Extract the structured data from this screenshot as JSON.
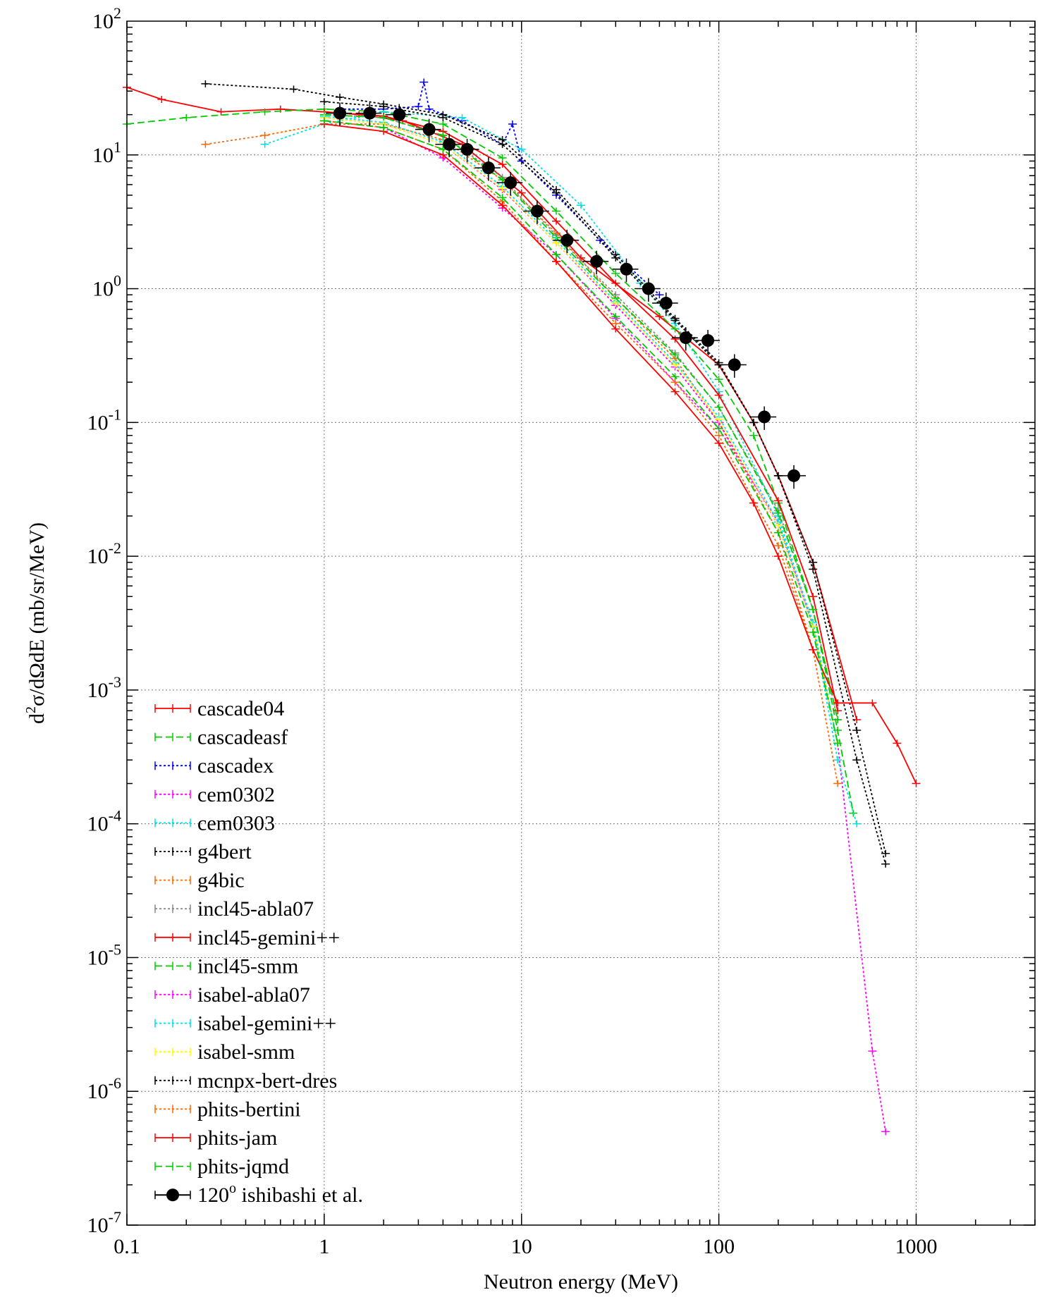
{
  "chart_data": {
    "type": "line",
    "x_scale": "log",
    "y_scale": "log",
    "xlim": [
      0.1,
      4000
    ],
    "ylim": [
      1e-07,
      100
    ],
    "grid": true,
    "legend_position": "bottom-left",
    "xlabel": "Neutron energy (MeV)",
    "ylabel_parts": [
      "d",
      "2",
      "σ/dΩdE (mb/sr/MeV)"
    ],
    "x_ticks": [
      {
        "value": 0.1,
        "label": "0.1"
      },
      {
        "value": 1,
        "label": "1"
      },
      {
        "value": 10,
        "label": "10"
      },
      {
        "value": 100,
        "label": "100"
      },
      {
        "value": 1000,
        "label": "1000"
      }
    ],
    "y_ticks": [
      {
        "value": 100,
        "base": "10",
        "exp": "2"
      },
      {
        "value": 10,
        "base": "10",
        "exp": "1"
      },
      {
        "value": 1,
        "base": "10",
        "exp": "0"
      },
      {
        "value": 0.1,
        "base": "10",
        "exp": "-1"
      },
      {
        "value": 0.01,
        "base": "10",
        "exp": "-2"
      },
      {
        "value": 0.001,
        "base": "10",
        "exp": "-3"
      },
      {
        "value": 0.0001,
        "base": "10",
        "exp": "-4"
      },
      {
        "value": 1e-05,
        "base": "10",
        "exp": "-5"
      },
      {
        "value": 1e-06,
        "base": "10",
        "exp": "-6"
      },
      {
        "value": 1e-07,
        "base": "10",
        "exp": "-7"
      }
    ],
    "series": [
      {
        "name": "cascade04",
        "color": "#ff0000",
        "dash": "solid",
        "x": [
          0.1,
          0.15,
          0.3,
          0.6,
          1.0,
          1.5,
          2.5,
          5,
          10,
          20,
          50,
          100,
          150,
          200,
          300,
          500
        ],
        "y": [
          32,
          26,
          21,
          22,
          21,
          20,
          18,
          12,
          5.2,
          1.7,
          0.62,
          0.27,
          0.1,
          0.04,
          0.009,
          0.0006
        ]
      },
      {
        "name": "cascadeasf",
        "color": "#00cc00",
        "dash": "dashed",
        "x": [
          0.1,
          0.2,
          0.5,
          1.0,
          2,
          4,
          8,
          15,
          30,
          60,
          100,
          150,
          200,
          300,
          400,
          480
        ],
        "y": [
          17,
          19,
          21,
          22,
          21,
          17,
          9.5,
          3.8,
          1.3,
          0.5,
          0.21,
          0.08,
          0.025,
          0.004,
          0.0005,
          0.00012
        ]
      },
      {
        "name": "cascadex",
        "color": "#0000ff",
        "dash": "dotted",
        "x": [
          1.2,
          2,
          3.0,
          3.2,
          3.4,
          5,
          8,
          9,
          10,
          15,
          25,
          50
        ],
        "y": [
          22,
          22,
          23,
          35,
          22,
          18,
          12,
          17,
          9,
          5,
          2.3,
          0.9
        ]
      },
      {
        "name": "cem0302",
        "color": "#ff00ff",
        "dash": "dotted",
        "x": [
          1,
          2,
          4,
          8,
          15,
          30,
          60,
          100,
          200,
          300,
          400,
          600,
          700
        ],
        "y": [
          18,
          16,
          9.5,
          4.0,
          1.8,
          0.6,
          0.2,
          0.09,
          0.018,
          0.003,
          0.0004,
          2e-06,
          5e-07
        ]
      },
      {
        "name": "cem0303",
        "color": "#00e0e0",
        "dash": "dotted",
        "x": [
          0.5,
          1,
          2,
          5,
          10,
          20,
          40,
          60,
          100,
          200,
          300,
          400,
          500
        ],
        "y": [
          12,
          17,
          21,
          19,
          11,
          4.2,
          1.1,
          0.55,
          0.17,
          0.02,
          0.003,
          0.0003,
          0.0001
        ]
      },
      {
        "name": "g4bert",
        "color": "#000000",
        "dash": "dotted",
        "x": [
          0.25,
          0.7,
          1.2,
          2,
          4,
          8,
          15,
          30,
          60,
          100,
          150,
          200,
          300,
          500,
          700
        ],
        "y": [
          34,
          31,
          27,
          24,
          20,
          13,
          5.5,
          1.8,
          0.6,
          0.28,
          0.1,
          0.04,
          0.008,
          0.0003,
          5e-05
        ]
      },
      {
        "name": "g4bic",
        "color": "#ff6600",
        "dash": "dotted",
        "x": [
          0.25,
          0.5,
          1,
          2,
          4,
          8,
          15,
          30,
          60,
          100,
          200,
          300,
          400
        ],
        "y": [
          12,
          14,
          17,
          17,
          13,
          6.5,
          2.6,
          0.85,
          0.3,
          0.1,
          0.015,
          0.002,
          0.0002
        ]
      },
      {
        "name": "incl45-abla07",
        "color": "#888888",
        "dash": "dotted",
        "x": [
          1,
          2,
          4,
          8,
          15,
          30,
          60,
          100,
          200,
          300,
          400
        ],
        "y": [
          20,
          19,
          14,
          6.8,
          2.5,
          0.9,
          0.33,
          0.13,
          0.022,
          0.004,
          0.0006
        ]
      },
      {
        "name": "incl45-gemini++",
        "color": "#ff0000",
        "dash": "solid",
        "x": [
          1,
          2,
          4,
          8,
          15,
          30,
          60,
          100,
          200,
          300,
          400
        ],
        "y": [
          21,
          19.5,
          15,
          8.5,
          3.2,
          1.1,
          0.42,
          0.16,
          0.026,
          0.005,
          0.0007
        ]
      },
      {
        "name": "incl45-smm",
        "color": "#00cc00",
        "dash": "dashed",
        "x": [
          1,
          2,
          4,
          8,
          15,
          30,
          60,
          100,
          200,
          300,
          400
        ],
        "y": [
          20,
          19,
          14,
          6.5,
          2.4,
          0.85,
          0.32,
          0.13,
          0.021,
          0.004,
          0.0006
        ]
      },
      {
        "name": "isabel-abla07",
        "color": "#ff00ff",
        "dash": "dotted",
        "x": [
          1,
          2,
          4,
          8,
          15,
          30,
          60,
          100,
          200,
          300,
          400
        ],
        "y": [
          19,
          17,
          12,
          5.5,
          2.2,
          0.75,
          0.26,
          0.1,
          0.017,
          0.003,
          0.0004
        ]
      },
      {
        "name": "isabel-gemini++",
        "color": "#00e0e0",
        "dash": "dotted",
        "x": [
          1,
          2,
          4,
          8,
          15,
          30,
          60,
          100,
          200,
          300,
          400
        ],
        "y": [
          19.5,
          17.5,
          12.5,
          5.8,
          2.3,
          0.8,
          0.28,
          0.11,
          0.018,
          0.0032,
          0.0004
        ]
      },
      {
        "name": "isabel-smm",
        "color": "#ffff00",
        "dash": "dotted",
        "x": [
          1,
          2,
          4,
          8,
          15,
          30,
          60,
          100,
          200,
          300,
          400
        ],
        "y": [
          19,
          17,
          12,
          5.6,
          2.2,
          0.78,
          0.27,
          0.105,
          0.017,
          0.003,
          0.0004
        ]
      },
      {
        "name": "mcnpx-bert-dres",
        "color": "#000000",
        "dash": "dotted",
        "x": [
          1,
          2,
          4,
          8,
          15,
          30,
          60,
          100,
          150,
          200,
          300,
          500,
          700
        ],
        "y": [
          25,
          23,
          19,
          12,
          5.2,
          1.7,
          0.58,
          0.27,
          0.1,
          0.04,
          0.009,
          0.0005,
          6e-05
        ]
      },
      {
        "name": "phits-bertini",
        "color": "#ff6600",
        "dash": "dotted",
        "x": [
          1,
          2,
          4,
          8,
          15,
          30,
          60,
          100,
          200,
          300
        ],
        "y": [
          18,
          16,
          11,
          4.5,
          1.6,
          0.55,
          0.2,
          0.08,
          0.012,
          0.002
        ]
      },
      {
        "name": "phits-jam",
        "color": "#ff0000",
        "dash": "solid",
        "x": [
          1,
          2,
          4,
          8,
          15,
          30,
          60,
          100,
          150,
          200,
          300,
          400,
          600,
          800,
          1000
        ],
        "y": [
          17,
          15,
          10,
          4.2,
          1.6,
          0.5,
          0.17,
          0.07,
          0.025,
          0.01,
          0.002,
          0.0008,
          0.0008,
          0.0004,
          0.0002
        ]
      },
      {
        "name": "phits-jqmd",
        "color": "#00cc00",
        "dash": "dashed",
        "x": [
          1,
          2,
          4,
          8,
          15,
          30,
          60,
          100,
          200,
          300,
          400
        ],
        "y": [
          18,
          16,
          11,
          4.8,
          1.8,
          0.62,
          0.22,
          0.09,
          0.015,
          0.0027,
          0.0004
        ]
      },
      {
        "name": "120o ishibashi et al.",
        "color": "#000000",
        "dash": "none",
        "marker": "circle",
        "legend_base": "120",
        "legend_sup": "o",
        "legend_rest": " ishibashi et al.",
        "x": [
          1.2,
          1.7,
          2.4,
          3.4,
          4.3,
          5.3,
          6.8,
          8.8,
          12,
          17,
          24,
          34,
          44,
          54,
          68,
          88,
          120,
          170,
          240
        ],
        "y": [
          20.5,
          20.5,
          20,
          15.5,
          12,
          11,
          8,
          6.2,
          3.8,
          2.3,
          1.6,
          1.4,
          1.0,
          0.78,
          0.43,
          0.41,
          0.27,
          0.11,
          0.04
        ]
      }
    ]
  }
}
